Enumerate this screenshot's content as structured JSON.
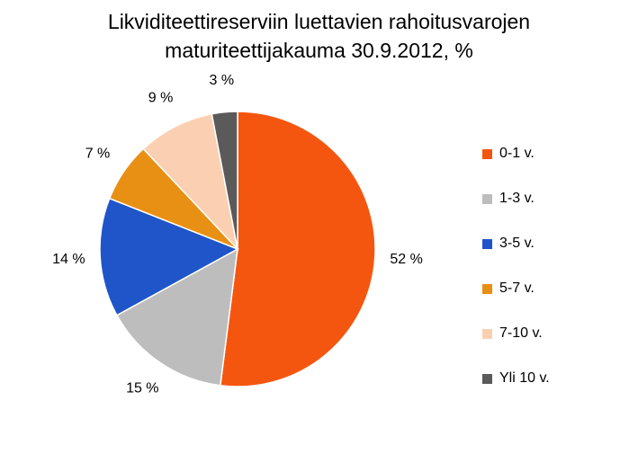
{
  "chart_data": {
    "type": "pie",
    "title": [
      "Likviditeettireserviin luettavien rahoitusvarojen",
      "maturiteettijakauma 30.9.2012, %"
    ],
    "slices": [
      {
        "name": "0-1 v.",
        "value": 52,
        "label": "52 %",
        "color": "#F5560F"
      },
      {
        "name": "1-3 v.",
        "value": 15,
        "label": "15 %",
        "color": "#BDBDBD"
      },
      {
        "name": "3-5 v.",
        "value": 14,
        "label": "14 %",
        "color": "#1F55C8"
      },
      {
        "name": "5-7 v.",
        "value": 7,
        "label": "7 %",
        "color": "#E89014"
      },
      {
        "name": "7-10 v.",
        "value": 9,
        "label": "9 %",
        "color": "#FBD0B2"
      },
      {
        "name": "Yli 10 v.",
        "value": 3,
        "label": "3 %",
        "color": "#5A5A5A"
      }
    ],
    "legend_position": "right"
  }
}
